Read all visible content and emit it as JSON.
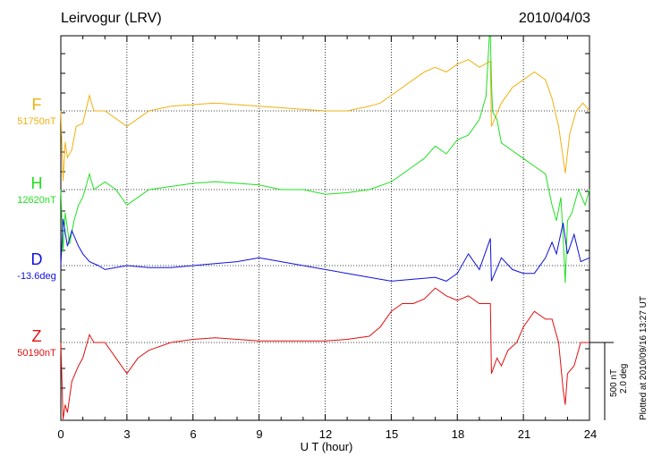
{
  "header": {
    "station": "Leirvogur (LRV)",
    "date": "2010/04/03"
  },
  "scale": {
    "nt": "500 nT",
    "deg": "2.0 deg"
  },
  "plotted_note": "Plotted at 2010/09/16 13:27 UT",
  "chart_data": {
    "type": "line",
    "xlabel": "U T (hour)",
    "xlim": [
      0,
      24
    ],
    "xticks": [
      "0",
      "3",
      "6",
      "9",
      "12",
      "15",
      "18",
      "21",
      "24"
    ],
    "grid": "dotted vertical lines every 3 hours; dotted baseline per trace",
    "series": [
      {
        "name": "F",
        "baseline_label": "51750nT",
        "color": "#f0b010",
        "x": [
          0,
          0.1,
          0.2,
          0.3,
          0.5,
          0.7,
          1.0,
          1.3,
          1.5,
          2.0,
          2.5,
          3.0,
          3.5,
          4.0,
          5.0,
          6.0,
          7.0,
          8.0,
          9.0,
          10.0,
          11.0,
          12.0,
          13.0,
          14.0,
          14.5,
          15.0,
          15.5,
          16.0,
          16.5,
          17.0,
          17.5,
          18.0,
          18.5,
          19.0,
          19.5,
          19.55,
          19.7,
          20.0,
          20.5,
          21.0,
          21.5,
          22.0,
          22.3,
          22.6,
          22.8,
          22.9,
          23.1,
          23.4,
          23.7,
          24.0
        ],
        "values": [
          0,
          -450,
          -200,
          -300,
          -250,
          -100,
          -80,
          100,
          0,
          0,
          -50,
          -100,
          -50,
          0,
          30,
          40,
          50,
          40,
          30,
          20,
          10,
          0,
          0,
          30,
          50,
          100,
          150,
          200,
          250,
          280,
          250,
          300,
          330,
          280,
          320,
          -100,
          -50,
          50,
          150,
          200,
          250,
          200,
          80,
          -100,
          -300,
          -400,
          -150,
          0,
          50,
          0
        ]
      },
      {
        "name": "H",
        "baseline_label": "12620nT",
        "color": "#20e020",
        "x": [
          0,
          0.1,
          0.2,
          0.4,
          0.6,
          0.8,
          1.0,
          1.3,
          1.5,
          2.0,
          2.5,
          3.0,
          3.5,
          4.0,
          5.0,
          6.0,
          7.0,
          8.0,
          9.0,
          10.0,
          11.0,
          12.0,
          13.0,
          14.0,
          15.0,
          15.5,
          16.0,
          16.5,
          17.0,
          17.5,
          18.0,
          18.5,
          19.0,
          19.3,
          19.45,
          19.5,
          19.55,
          19.6,
          19.8,
          20.0,
          20.5,
          21.0,
          21.5,
          22.0,
          22.3,
          22.5,
          22.7,
          22.8,
          22.9,
          23.0,
          23.2,
          23.5,
          23.8,
          24.0
        ],
        "values": [
          0,
          -400,
          -150,
          -350,
          -200,
          -100,
          -50,
          100,
          0,
          50,
          0,
          -100,
          -50,
          0,
          20,
          40,
          50,
          40,
          30,
          0,
          0,
          -30,
          -20,
          0,
          50,
          100,
          150,
          200,
          280,
          230,
          320,
          350,
          450,
          600,
          1400,
          1500,
          700,
          500,
          450,
          300,
          250,
          200,
          150,
          100,
          -100,
          -200,
          -50,
          -300,
          -600,
          -200,
          -150,
          0,
          -100,
          0
        ]
      },
      {
        "name": "D",
        "baseline_label": "-13.6deg",
        "color": "#1010e0",
        "x": [
          0,
          0.1,
          0.3,
          0.5,
          0.8,
          1.0,
          1.3,
          1.7,
          2.0,
          3.0,
          4.0,
          5.0,
          6.0,
          7.0,
          8.0,
          9.0,
          10.0,
          11.0,
          12.0,
          13.0,
          14.0,
          15.0,
          16.0,
          17.0,
          17.5,
          18.0,
          18.5,
          19.0,
          19.5,
          19.55,
          19.7,
          20.0,
          20.5,
          21.0,
          21.5,
          22.0,
          22.3,
          22.5,
          22.8,
          23.0,
          23.3,
          23.6,
          24.0
        ],
        "values": [
          0,
          1.2,
          0.5,
          0.9,
          0.5,
          0.3,
          0.1,
          0,
          -0.1,
          0,
          -0.05,
          -0.05,
          0,
          0.05,
          0.1,
          0.2,
          0.1,
          0,
          -0.1,
          -0.2,
          -0.3,
          -0.4,
          -0.35,
          -0.3,
          -0.4,
          -0.2,
          0.3,
          -0.1,
          0.7,
          -0.4,
          -0.2,
          0.2,
          -0.1,
          -0.2,
          -0.2,
          0.2,
          0.6,
          0.3,
          1.1,
          0.3,
          0.8,
          0.1,
          0.2
        ]
      },
      {
        "name": "Z",
        "baseline_label": "50190nT",
        "color": "#e01010",
        "x": [
          0,
          0.1,
          0.2,
          0.3,
          0.5,
          0.8,
          1.0,
          1.3,
          1.5,
          2.0,
          2.5,
          3.0,
          3.5,
          4.0,
          5.0,
          6.0,
          7.0,
          8.0,
          9.0,
          10.0,
          11.0,
          12.0,
          13.0,
          14.0,
          14.5,
          15.0,
          15.5,
          16.0,
          16.5,
          17.0,
          17.5,
          18.0,
          18.5,
          19.0,
          19.5,
          19.55,
          19.8,
          20.0,
          20.3,
          20.7,
          21.0,
          21.5,
          22.0,
          22.3,
          22.6,
          22.8,
          22.9,
          23.0,
          23.3,
          23.6,
          24.0
        ],
        "values": [
          0,
          -650,
          -400,
          -450,
          -250,
          -150,
          -100,
          50,
          0,
          0,
          -100,
          -200,
          -100,
          -50,
          0,
          20,
          30,
          20,
          10,
          10,
          10,
          10,
          20,
          40,
          100,
          200,
          250,
          250,
          280,
          350,
          300,
          270,
          300,
          250,
          250,
          -200,
          -100,
          -150,
          -50,
          0,
          100,
          200,
          150,
          150,
          0,
          -300,
          -400,
          -200,
          -150,
          0,
          0
        ]
      }
    ]
  }
}
